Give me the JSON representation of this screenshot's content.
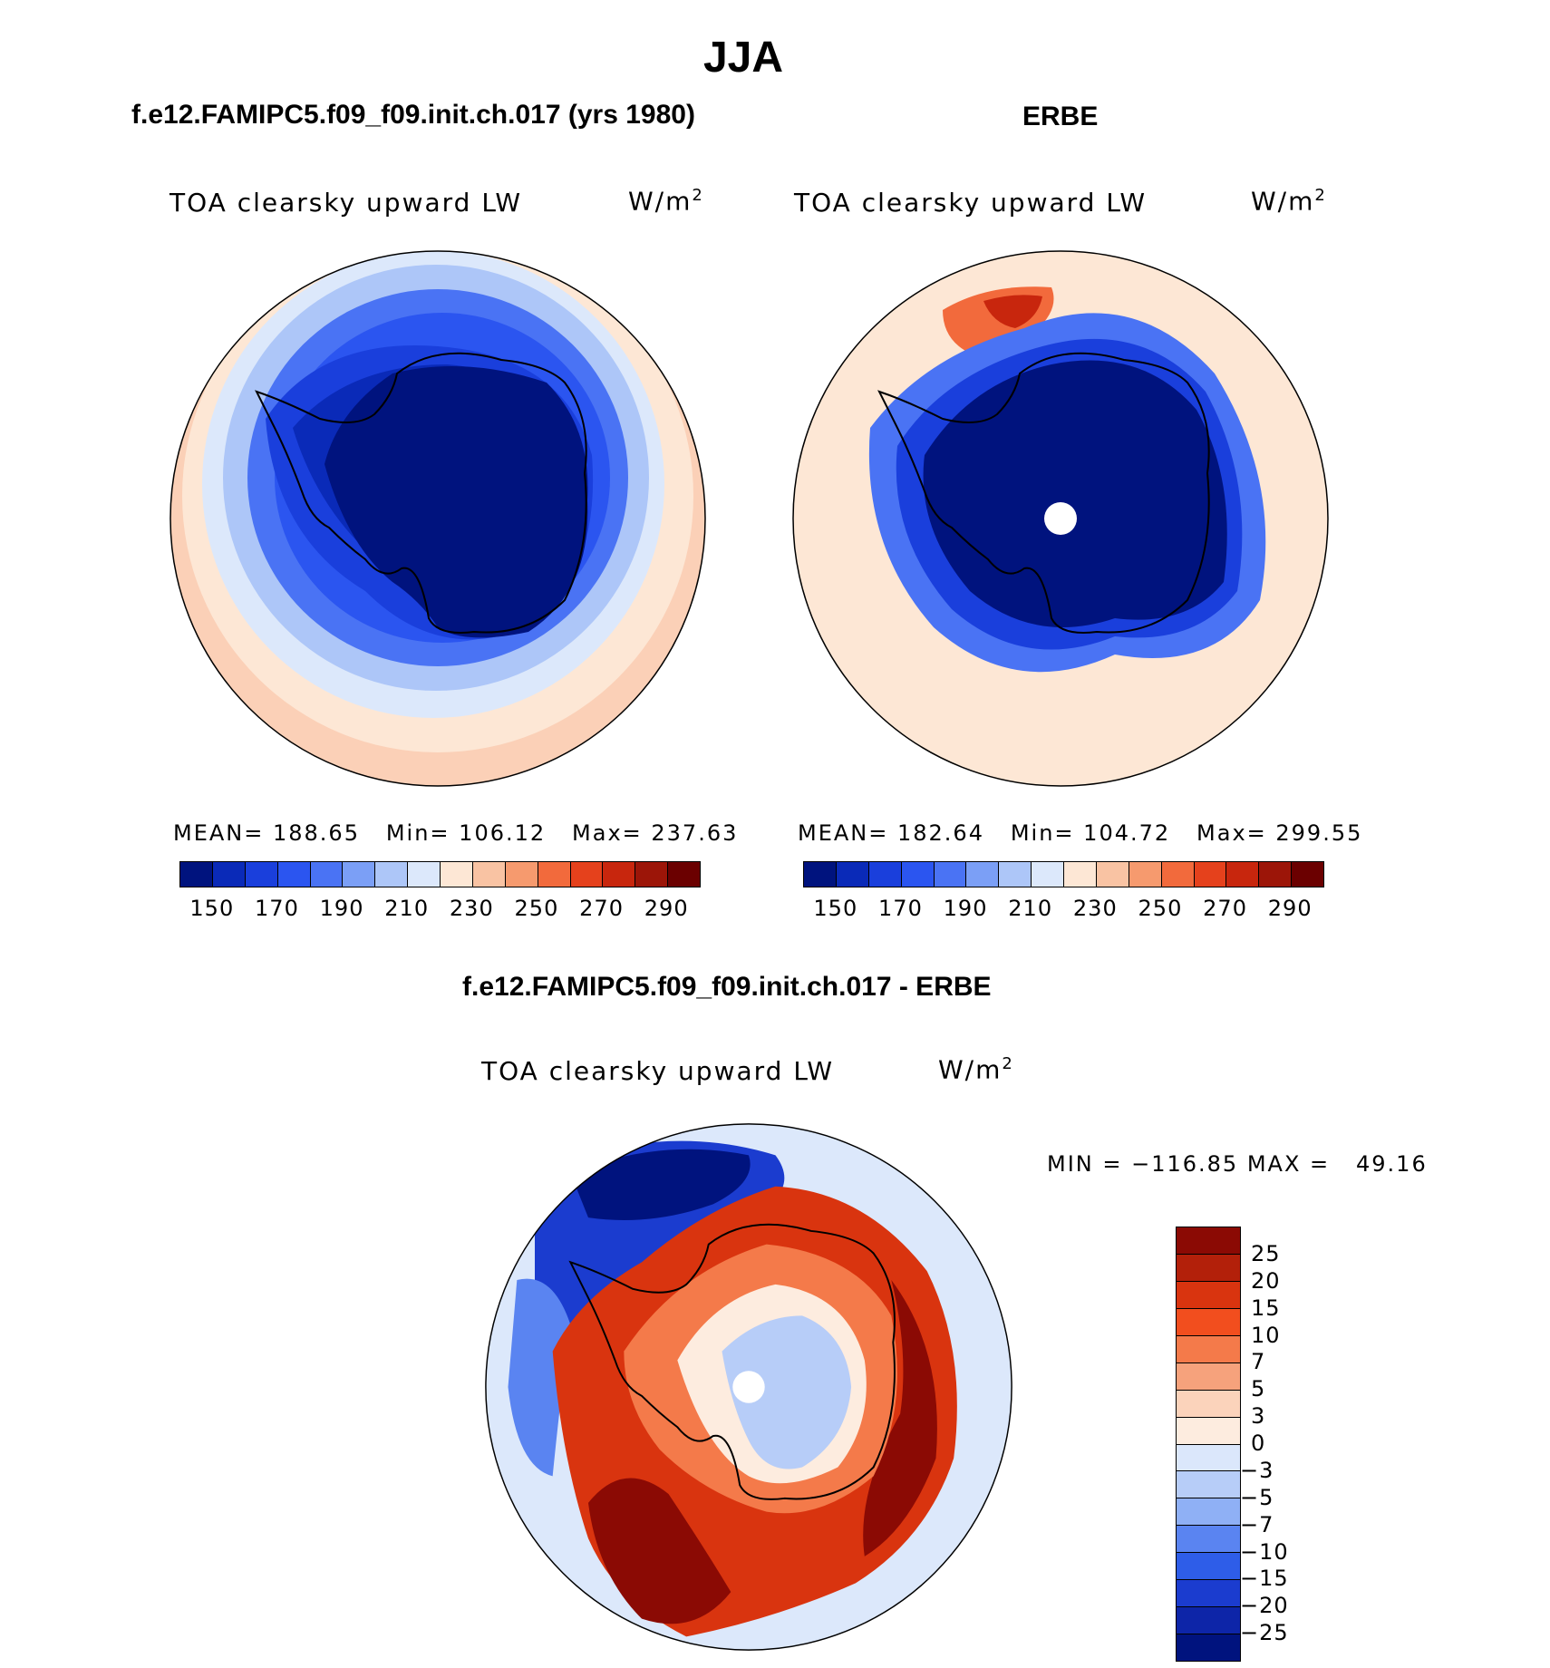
{
  "season_title": "JJA",
  "panels": {
    "model": {
      "case_title": "f.e12.FAMIPC5.f09_f09.init.ch.017 (yrs 1980)",
      "variable": "TOA clearsky upward LW",
      "units": "W/m",
      "units_sup": "2",
      "stats": "MEAN= 188.65   Min= 106.12   Max= 237.63"
    },
    "obs": {
      "case_title": "ERBE",
      "variable": "TOA clearsky upward LW",
      "units": "W/m",
      "units_sup": "2",
      "stats": "MEAN= 182.64   Min= 104.72   Max= 299.55"
    },
    "diff": {
      "case_title": "f.e12.FAMIPC5.f09_f09.init.ch.017 - ERBE",
      "variable": "TOA clearsky upward LW",
      "units": "W/m",
      "units_sup": "2",
      "stats": "MIN = −116.85 MAX =   49.16"
    }
  },
  "colorbar_abs": {
    "labels": [
      "150",
      "170",
      "190",
      "210",
      "230",
      "250",
      "270",
      "290"
    ],
    "colors": [
      "#00137e",
      "#0a2ab8",
      "#1a3fdc",
      "#2b55f0",
      "#4a73f4",
      "#7b9ff6",
      "#adc6f8",
      "#dce8fb",
      "#fde7d5",
      "#f9c3a3",
      "#f69a6e",
      "#f26a3c",
      "#e5411c",
      "#c8260d",
      "#9c1508",
      "#6b0000"
    ]
  },
  "colorbar_diff": {
    "labels": [
      "25",
      "20",
      "15",
      "10",
      "7",
      "5",
      "3",
      "0",
      "−3",
      "−5",
      "−7",
      "−10",
      "−15",
      "−20",
      "−25"
    ],
    "colors": [
      "#8b0a04",
      "#b3200a",
      "#d9340f",
      "#f24e1e",
      "#f47a4a",
      "#f6a27c",
      "#fbd3bb",
      "#fdecdf",
      "#dbe7fb",
      "#b7cdf8",
      "#8fb0f5",
      "#5a84f1",
      "#2e5de8",
      "#1b3ccf",
      "#0d25a8",
      "#00137e"
    ]
  }
}
